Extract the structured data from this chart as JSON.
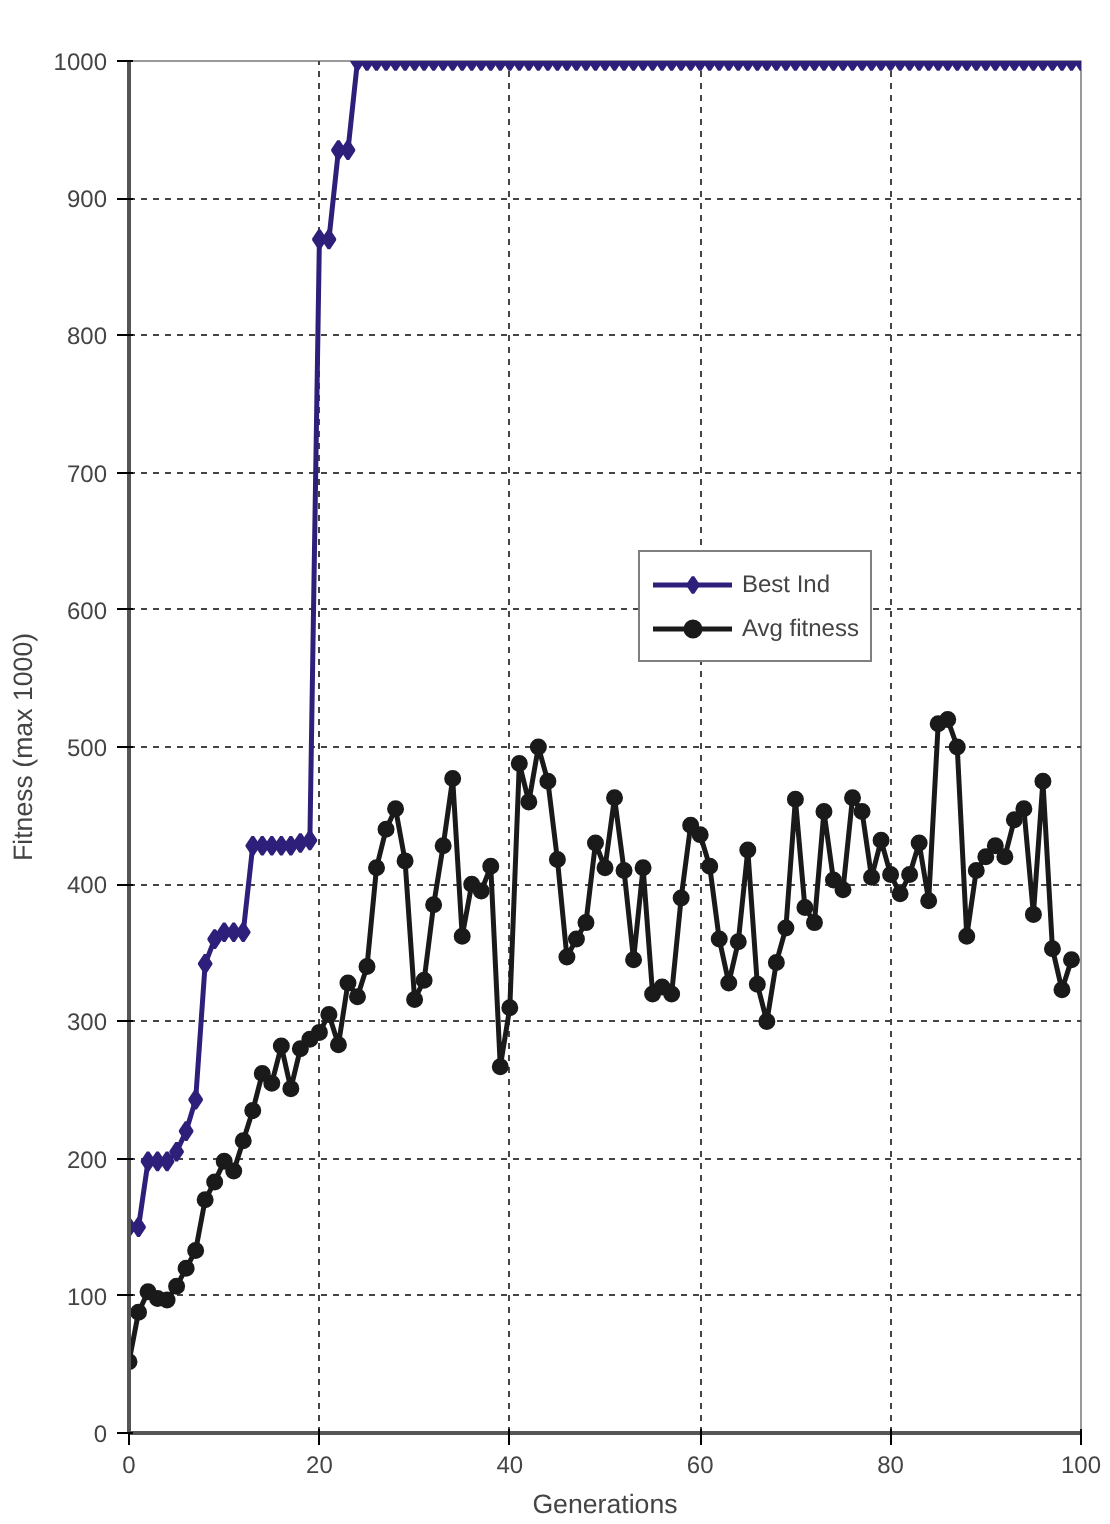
{
  "chart_data": {
    "type": "line",
    "xlabel": "Generations",
    "ylabel": "Fitness (max 1000)",
    "x": [
      0,
      1,
      2,
      3,
      4,
      5,
      6,
      7,
      8,
      9,
      10,
      11,
      12,
      13,
      14,
      15,
      16,
      17,
      18,
      19,
      20,
      21,
      22,
      23,
      24,
      25,
      26,
      27,
      28,
      29,
      30,
      31,
      32,
      33,
      34,
      35,
      36,
      37,
      38,
      39,
      40,
      41,
      42,
      43,
      44,
      45,
      46,
      47,
      48,
      49,
      50,
      51,
      52,
      53,
      54,
      55,
      56,
      57,
      58,
      59,
      60,
      61,
      62,
      63,
      64,
      65,
      66,
      67,
      68,
      69,
      70,
      71,
      72,
      73,
      74,
      75,
      76,
      77,
      78,
      79,
      80,
      81,
      82,
      83,
      84,
      85,
      86,
      87,
      88,
      89,
      90,
      91,
      92,
      93,
      94,
      95,
      96,
      97,
      98,
      99,
      100
    ],
    "xlim": [
      0,
      100
    ],
    "xticks": [
      0,
      20,
      40,
      60,
      80,
      100
    ],
    "ylim": [
      0,
      1000
    ],
    "yticks": [
      0,
      100,
      200,
      300,
      400,
      500,
      600,
      700,
      800,
      900,
      1000
    ],
    "grid": true,
    "legend": "right",
    "line_style": "solid",
    "series": [
      {
        "name": "Best Ind",
        "color": "#2e1f7a",
        "marker": "diamond",
        "values": [
          150,
          150,
          198,
          198,
          198,
          205,
          220,
          243,
          342,
          360,
          365,
          365,
          365,
          428,
          428,
          428,
          428,
          428,
          430,
          432,
          870,
          870,
          935,
          935,
          1000,
          1000,
          1000,
          1000,
          1000,
          1000,
          1000,
          1000,
          1000,
          1000,
          1000,
          1000,
          1000,
          1000,
          1000,
          1000,
          1000,
          1000,
          1000,
          1000,
          1000,
          1000,
          1000,
          1000,
          1000,
          1000,
          1000,
          1000,
          1000,
          1000,
          1000,
          1000,
          1000,
          1000,
          1000,
          1000,
          1000,
          1000,
          1000,
          1000,
          1000,
          1000,
          1000,
          1000,
          1000,
          1000,
          1000,
          1000,
          1000,
          1000,
          1000,
          1000,
          1000,
          1000,
          1000,
          1000,
          1000,
          1000,
          1000,
          1000,
          1000,
          1000,
          1000,
          1000,
          1000,
          1000,
          1000,
          1000,
          1000,
          1000,
          1000,
          1000,
          1000,
          1000,
          1000,
          1000,
          1000
        ]
      },
      {
        "name": "Avg fitness",
        "color": "#1a1a1a",
        "marker": "circle",
        "values": [
          52,
          88,
          103,
          98,
          97,
          107,
          120,
          133,
          170,
          183,
          198,
          191,
          213,
          235,
          262,
          255,
          282,
          251,
          280,
          287,
          292,
          305,
          283,
          328,
          318,
          340,
          412,
          440,
          455,
          417,
          316,
          330,
          385,
          428,
          477,
          362,
          400,
          395,
          413,
          267,
          310,
          488,
          460,
          500,
          475,
          418,
          347,
          360,
          372,
          430,
          412,
          463,
          410,
          345,
          412,
          320,
          325,
          320,
          390,
          443,
          436,
          413,
          360,
          328,
          358,
          425,
          327,
          300,
          343,
          368,
          462,
          383,
          372,
          453,
          403,
          396,
          463,
          453,
          405,
          432,
          407,
          393,
          407,
          430,
          388,
          517,
          520,
          500,
          362,
          410,
          420,
          428,
          420,
          447,
          455,
          378,
          475,
          353,
          323,
          345,
          null
        ]
      }
    ]
  }
}
